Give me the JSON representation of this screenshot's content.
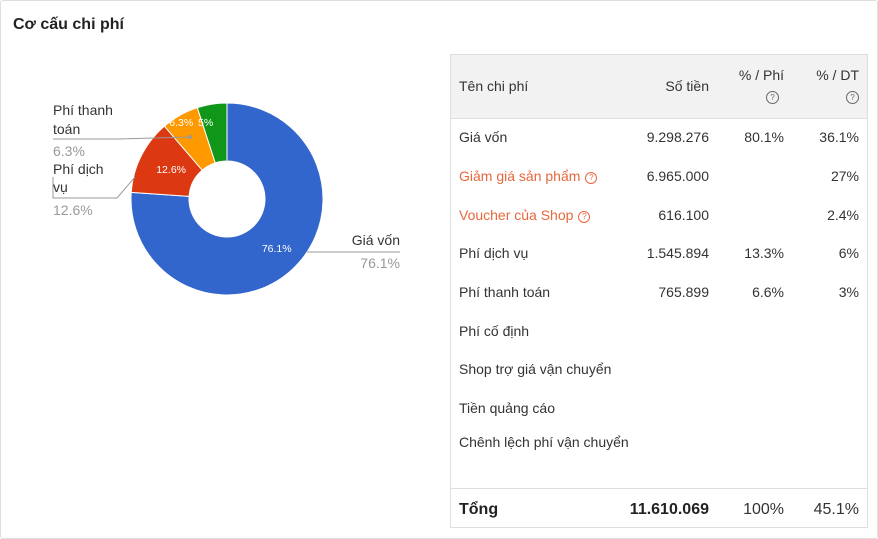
{
  "title": "Cơ cấu chi phí",
  "chart_data": {
    "type": "pie",
    "slices": [
      {
        "label": "Giá vốn",
        "value": 76.1,
        "display": "76.1%",
        "color": "#3366cc"
      },
      {
        "label": "Phí dịch vụ",
        "value": 12.6,
        "display": "12.6%",
        "color": "#dc3912"
      },
      {
        "label": "Phí thanh toán",
        "value": 6.3,
        "display": "6.3%",
        "color": "#ff9900"
      },
      {
        "label": "",
        "value": 5.0,
        "display": "5%",
        "color": "#109618"
      }
    ],
    "callouts": [
      {
        "label_lines": [
          "Giá vốn"
        ],
        "pct": "76.1%"
      },
      {
        "label_lines": [
          "Phí dịch",
          "vụ"
        ],
        "pct": "12.6%"
      },
      {
        "label_lines": [
          "Phí thanh",
          "toán"
        ],
        "pct": "6.3%"
      }
    ]
  },
  "table": {
    "headers": {
      "name": "Tên chi phí",
      "amount": "Số tiền",
      "fee": "% / Phí",
      "dt": "% / DT"
    },
    "rows": [
      {
        "name": "Giá vốn",
        "amount": "9.298.276",
        "fee": "80.1%",
        "dt": "36.1%",
        "highlight": false
      },
      {
        "name": "Giảm giá sản phẩm",
        "amount": "6.965.000",
        "fee": "",
        "dt": "27%",
        "highlight": true
      },
      {
        "name": "Voucher của Shop",
        "amount": "616.100",
        "fee": "",
        "dt": "2.4%",
        "highlight": true
      },
      {
        "name": "Phí dịch vụ",
        "amount": "1.545.894",
        "fee": "13.3%",
        "dt": "6%",
        "highlight": false
      },
      {
        "name": "Phí thanh toán",
        "amount": "765.899",
        "fee": "6.6%",
        "dt": "3%",
        "highlight": false
      },
      {
        "name": "Phí cố định",
        "amount": "",
        "fee": "",
        "dt": "",
        "highlight": false
      },
      {
        "name": "Shop trợ giá vận chuyển",
        "amount": "",
        "fee": "",
        "dt": "",
        "highlight": false
      },
      {
        "name": "Tiền quảng cáo",
        "amount": "",
        "fee": "",
        "dt": "",
        "highlight": false
      },
      {
        "name": "Chênh lệch phí vận chuyển",
        "amount": "",
        "fee": "",
        "dt": "",
        "highlight": false
      }
    ],
    "total": {
      "name": "Tổng",
      "amount": "11.610.069",
      "fee": "100%",
      "dt": "45.1%"
    }
  }
}
